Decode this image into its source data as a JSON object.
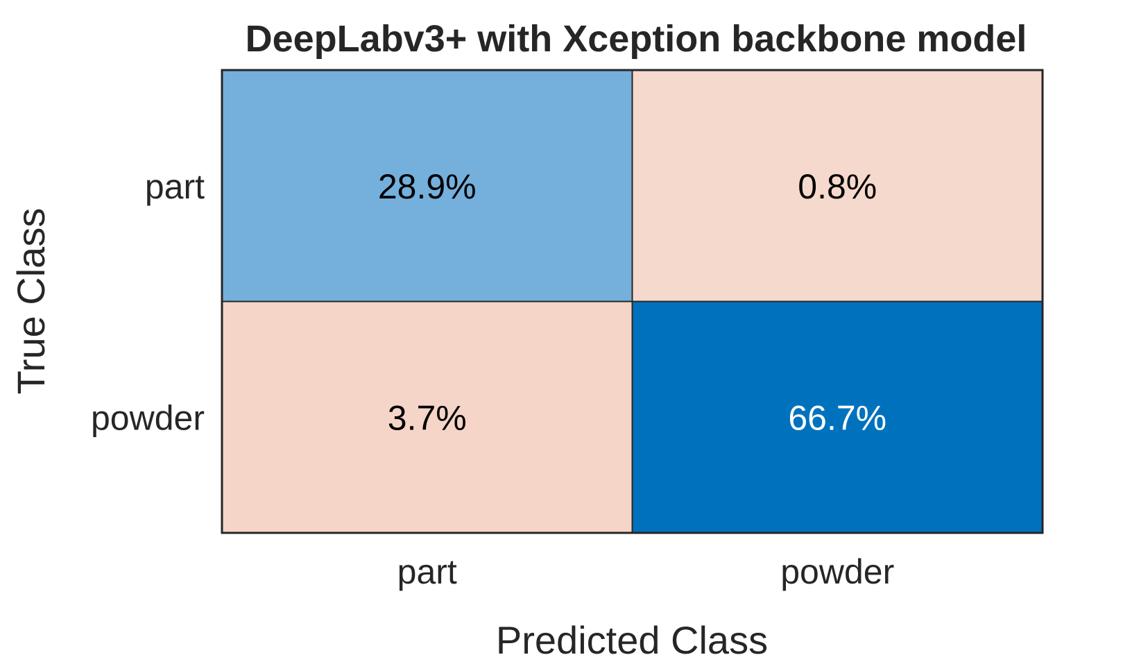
{
  "chart_data": {
    "type": "heatmap",
    "title": "DeepLabv3+ with Xception backbone model",
    "xlabel": "Predicted Class",
    "ylabel": "True Class",
    "x_categories": [
      "part",
      "powder"
    ],
    "y_categories": [
      "part",
      "powder"
    ],
    "values": [
      [
        28.9,
        0.8
      ],
      [
        3.7,
        66.7
      ]
    ],
    "value_labels": [
      [
        "28.9%",
        "0.8%"
      ],
      [
        "3.7%",
        "66.7%"
      ]
    ],
    "cell_colors": [
      [
        "#75afdb",
        "#f6d9cd"
      ],
      [
        "#f5d5c8",
        "#0072bd"
      ]
    ],
    "cell_text_colors": [
      [
        "#000000",
        "#000000"
      ],
      [
        "#000000",
        "#ffffff"
      ]
    ],
    "grid": true,
    "legend": "none"
  }
}
